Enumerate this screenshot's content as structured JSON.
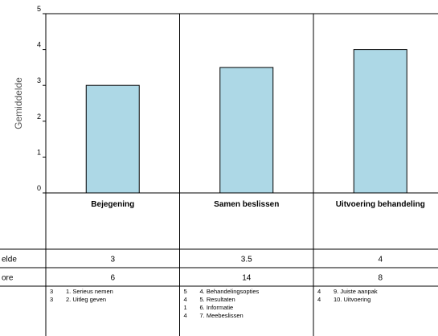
{
  "chart_data": {
    "type": "bar",
    "ylabel": "Gemiddelde",
    "ylim": [
      0,
      5
    ],
    "yticks": [
      "0",
      "1",
      "2",
      "3",
      "4",
      "5"
    ],
    "grid": false,
    "bar_color": "#add8e6",
    "bar_edge_color": "#000000",
    "categories": [
      "Bejegening",
      "Samen beslissen",
      "Uitvoering behandeling"
    ],
    "values": [
      3,
      3.5,
      4
    ],
    "table": {
      "rows": [
        {
          "label": "elde",
          "values": [
            "3",
            "3.5",
            "4"
          ]
        },
        {
          "label": "ore",
          "values": [
            "6",
            "14",
            "8"
          ]
        }
      ],
      "items": [
        [
          {
            "score": "3",
            "text": "1.  Serieus nemen"
          },
          {
            "score": "3",
            "text": "2.  Uitleg geven"
          }
        ],
        [
          {
            "score": "5",
            "text": "4.  Behandelingsopties"
          },
          {
            "score": "4",
            "text": "5.  Resultaten"
          },
          {
            "score": "1",
            "text": "6.  Informatie"
          },
          {
            "score": "4",
            "text": "7.  Meebeslissen"
          }
        ],
        [
          {
            "score": "4",
            "text": "9.  Juiste aanpak"
          },
          {
            "score": "4",
            "text": "10.  Uitvoering"
          }
        ]
      ]
    }
  }
}
